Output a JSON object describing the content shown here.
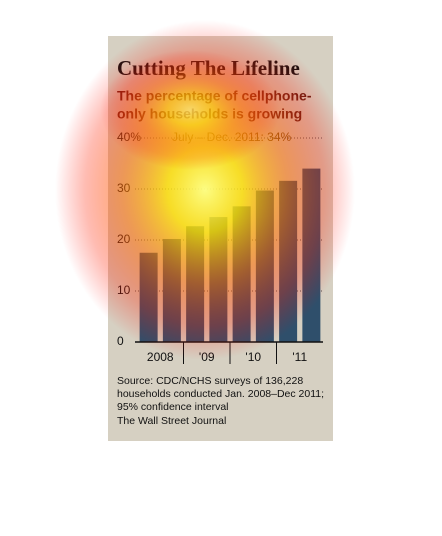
{
  "chart_data": {
    "type": "bar",
    "title": "Cutting The Lifeline",
    "subtitle": [
      "The percentage of cellphone-",
      "only households is growing"
    ],
    "annotation": "July – Dec. 2011: 34%",
    "categories": [
      "2008",
      null,
      "'09",
      null,
      "'10",
      null,
      "'11",
      null
    ],
    "values": [
      17.5,
      20.2,
      22.7,
      24.5,
      26.6,
      29.7,
      31.6,
      34
    ],
    "color": "#2f4f6b",
    "ylim": [
      0,
      40
    ],
    "yticks": [
      0,
      10,
      20,
      30,
      {
        "value": 40,
        "label": "40%"
      }
    ],
    "grid": true,
    "source": [
      "Source: CDC/NCHS surveys of 136,228",
      "households conducted Jan. 2008–Dec 2011;",
      "95% confidence interval"
    ],
    "credit": "The Wall Street Journal"
  }
}
